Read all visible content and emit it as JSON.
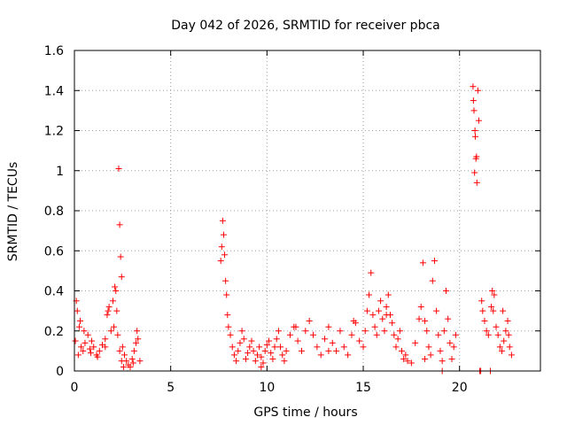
{
  "chart_data": {
    "type": "scatter",
    "title": "Day 042 of 2026, SRMTID for receiver pbca",
    "xlabel": "GPS time / hours",
    "ylabel": "SRMTID / TECUs",
    "xlim": [
      0,
      24.2
    ],
    "ylim": [
      0,
      1.6
    ],
    "x_ticks": [
      0,
      5,
      10,
      15,
      20
    ],
    "x_tick_labels": [
      "0",
      "5",
      "10",
      "15",
      "20"
    ],
    "y_ticks": [
      0,
      0.2,
      0.4,
      0.6,
      0.8,
      1.0,
      1.2,
      1.4,
      1.6
    ],
    "y_tick_labels": [
      "0",
      "0.2",
      "0.4",
      "0.6",
      "0.8",
      "1",
      "1.2",
      "1.4",
      "1.6"
    ],
    "grid": true,
    "marker": "+",
    "series": [
      {
        "name": "SRMTID",
        "color": "#ff0000",
        "x": [
          0.05,
          0.15,
          0.25,
          0.35,
          0.45,
          0.55,
          0.7,
          0.85,
          1.0,
          1.15,
          1.3,
          1.45,
          1.6,
          1.7,
          1.8,
          1.9,
          2.0,
          2.1,
          2.2,
          2.25,
          2.3,
          2.35,
          2.4,
          2.45,
          2.5,
          2.6,
          2.7,
          2.8,
          2.9,
          3.0,
          3.1,
          3.2,
          3.3,
          3.4,
          0.1,
          0.3,
          0.5,
          0.8,
          1.2,
          1.6,
          2.15,
          2.35,
          2.45,
          2.55,
          3.25,
          0.2,
          0.9,
          1.75,
          2.05,
          3.05,
          7.6,
          7.65,
          7.7,
          7.75,
          7.8,
          7.85,
          7.9,
          7.95,
          8.0,
          8.1,
          8.2,
          8.3,
          8.4,
          8.5,
          8.6,
          8.7,
          8.8,
          8.9,
          9.0,
          9.1,
          9.2,
          9.3,
          9.4,
          9.5,
          9.6,
          9.7,
          9.8,
          9.9,
          10.0,
          10.1,
          10.2,
          10.3,
          10.4,
          10.5,
          10.6,
          10.7,
          10.8,
          10.9,
          11.0,
          11.2,
          11.4,
          11.6,
          11.8,
          12.0,
          12.2,
          12.4,
          12.6,
          12.8,
          13.0,
          13.2,
          13.4,
          13.6,
          13.8,
          14.0,
          14.2,
          14.4,
          14.6,
          14.8,
          15.0,
          15.1,
          15.2,
          15.3,
          15.4,
          15.5,
          15.6,
          15.7,
          15.8,
          15.9,
          16.0,
          16.1,
          16.2,
          16.3,
          16.4,
          16.5,
          16.6,
          16.7,
          16.8,
          16.9,
          17.0,
          17.1,
          17.2,
          17.3,
          17.5,
          17.7,
          17.9,
          18.0,
          18.1,
          18.2,
          18.3,
          18.4,
          18.5,
          18.6,
          18.7,
          18.8,
          18.9,
          19.0,
          19.1,
          19.2,
          19.3,
          19.4,
          19.5,
          19.6,
          19.7,
          19.8,
          9.7,
          11.5,
          13.2,
          14.5,
          16.2,
          18.2,
          19.1,
          20.7,
          20.75,
          20.8,
          20.85,
          20.9,
          20.95,
          21.0,
          21.1,
          21.2,
          21.3,
          21.4,
          21.5,
          21.6,
          21.7,
          21.8,
          21.9,
          22.0,
          22.1,
          22.2,
          22.3,
          22.4,
          22.5,
          22.6,
          22.7,
          20.72,
          20.78,
          20.82,
          20.88,
          21.15,
          21.65,
          21.75,
          22.25,
          22.55,
          21.05
        ],
        "y": [
          0.15,
          0.3,
          0.22,
          0.12,
          0.1,
          0.14,
          0.18,
          0.09,
          0.12,
          0.08,
          0.1,
          0.13,
          0.16,
          0.28,
          0.32,
          0.2,
          0.35,
          0.42,
          0.3,
          0.18,
          1.01,
          0.73,
          0.57,
          0.47,
          0.12,
          0.08,
          0.05,
          0.03,
          0.02,
          0.06,
          0.1,
          0.14,
          0.16,
          0.05,
          0.35,
          0.25,
          0.2,
          0.11,
          0.07,
          0.12,
          0.4,
          0.1,
          0.05,
          0.02,
          0.2,
          0.08,
          0.15,
          0.3,
          0.22,
          0.04,
          0.55,
          0.62,
          0.75,
          0.68,
          0.58,
          0.45,
          0.38,
          0.28,
          0.22,
          0.18,
          0.12,
          0.08,
          0.05,
          0.1,
          0.14,
          0.2,
          0.16,
          0.06,
          0.09,
          0.12,
          0.15,
          0.1,
          0.05,
          0.08,
          0.12,
          0.07,
          0.04,
          0.1,
          0.13,
          0.15,
          0.09,
          0.06,
          0.12,
          0.16,
          0.2,
          0.12,
          0.08,
          0.05,
          0.1,
          0.18,
          0.22,
          0.15,
          0.1,
          0.2,
          0.25,
          0.18,
          0.12,
          0.08,
          0.16,
          0.22,
          0.14,
          0.1,
          0.2,
          0.12,
          0.08,
          0.18,
          0.24,
          0.15,
          0.12,
          0.2,
          0.3,
          0.38,
          0.49,
          0.28,
          0.22,
          0.18,
          0.3,
          0.35,
          0.26,
          0.2,
          0.32,
          0.38,
          0.28,
          0.24,
          0.18,
          0.12,
          0.16,
          0.2,
          0.1,
          0.06,
          0.08,
          0.05,
          0.04,
          0.14,
          0.26,
          0.32,
          0.54,
          0.25,
          0.2,
          0.12,
          0.08,
          0.45,
          0.55,
          0.3,
          0.18,
          0.1,
          0.05,
          0.2,
          0.4,
          0.26,
          0.14,
          0.06,
          0.12,
          0.18,
          0.02,
          0.22,
          0.1,
          0.25,
          0.28,
          0.06,
          0.0,
          1.42,
          1.3,
          1.2,
          1.06,
          0.94,
          1.4,
          1.25,
          0.0,
          0.3,
          0.25,
          0.2,
          0.18,
          0.0,
          0.4,
          0.38,
          0.22,
          0.18,
          0.12,
          0.1,
          0.15,
          0.2,
          0.25,
          0.12,
          0.08,
          1.35,
          0.99,
          1.17,
          1.07,
          0.35,
          0.32,
          0.3,
          0.3,
          0.18,
          0.0
        ]
      }
    ]
  }
}
